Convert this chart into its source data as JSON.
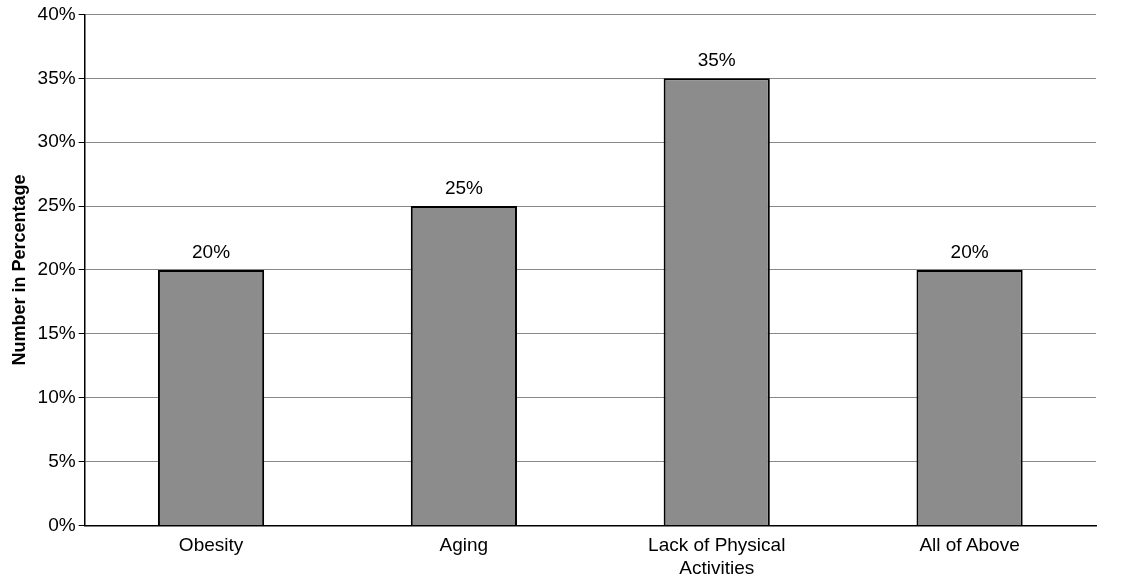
{
  "chart_data": {
    "type": "bar",
    "ylabel": "Number in Percentage",
    "categories": [
      "Obesity",
      "Aging",
      "Lack of Physical Activities",
      "All of Above"
    ],
    "values": [
      20,
      25,
      35,
      20
    ],
    "value_labels": [
      "20%",
      "25%",
      "35%",
      "20%"
    ],
    "color": "#8c8c8c",
    "ylim": [
      0,
      40
    ],
    "yticks": [
      {
        "value": 0,
        "label": "0%"
      },
      {
        "value": 5,
        "label": "5%"
      },
      {
        "value": 10,
        "label": "10%"
      },
      {
        "value": 15,
        "label": "15%"
      },
      {
        "value": 20,
        "label": "20%"
      },
      {
        "value": 25,
        "label": "25%"
      },
      {
        "value": 30,
        "label": "30%"
      },
      {
        "value": 35,
        "label": "35%"
      },
      {
        "value": 40,
        "label": "40%"
      }
    ],
    "grid": "y",
    "legend": false
  }
}
